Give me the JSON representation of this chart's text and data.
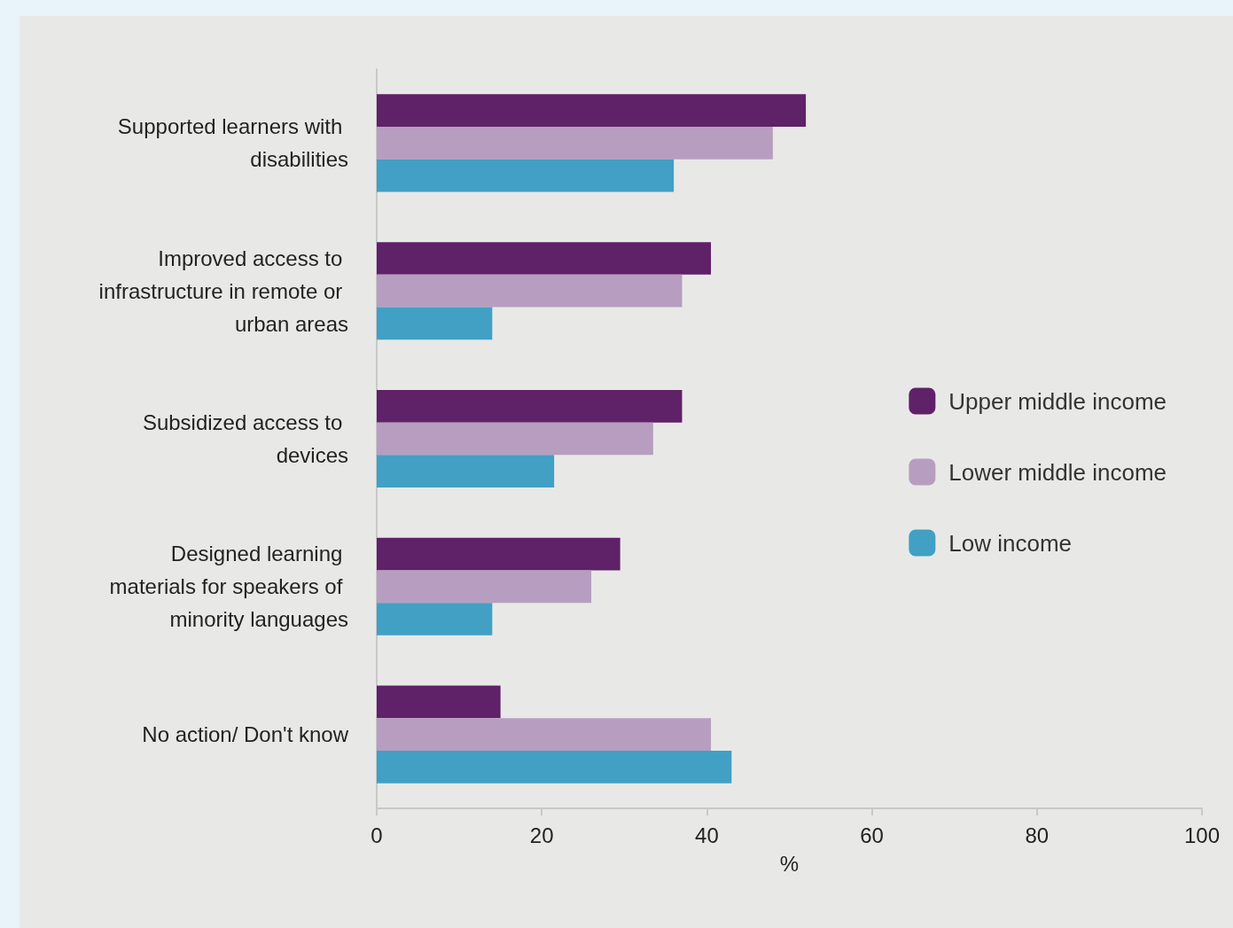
{
  "chart_data": {
    "type": "bar",
    "orientation": "horizontal",
    "xlabel": "%",
    "categories": [
      "Supported learners with disabilities",
      "Improved access to infrastructure in remote or urban areas",
      "Subsidized access to devices",
      "Designed learning materials for speakers of minority languages",
      "No action/ Don't know"
    ],
    "series": [
      {
        "name": "Upper middle income",
        "color": "#5f2167",
        "values": [
          52,
          40.5,
          37,
          29.5,
          15
        ]
      },
      {
        "name": "Lower middle income",
        "color": "#b79ec0",
        "values": [
          48,
          37,
          33.5,
          26,
          40.5
        ]
      },
      {
        "name": "Low income",
        "color": "#41a0c4",
        "values": [
          36,
          14,
          21.5,
          14,
          43
        ]
      }
    ],
    "xlim": [
      0,
      100
    ],
    "xticks": [
      0,
      20,
      40,
      60,
      80,
      100
    ],
    "grid": false,
    "legend": "right"
  }
}
